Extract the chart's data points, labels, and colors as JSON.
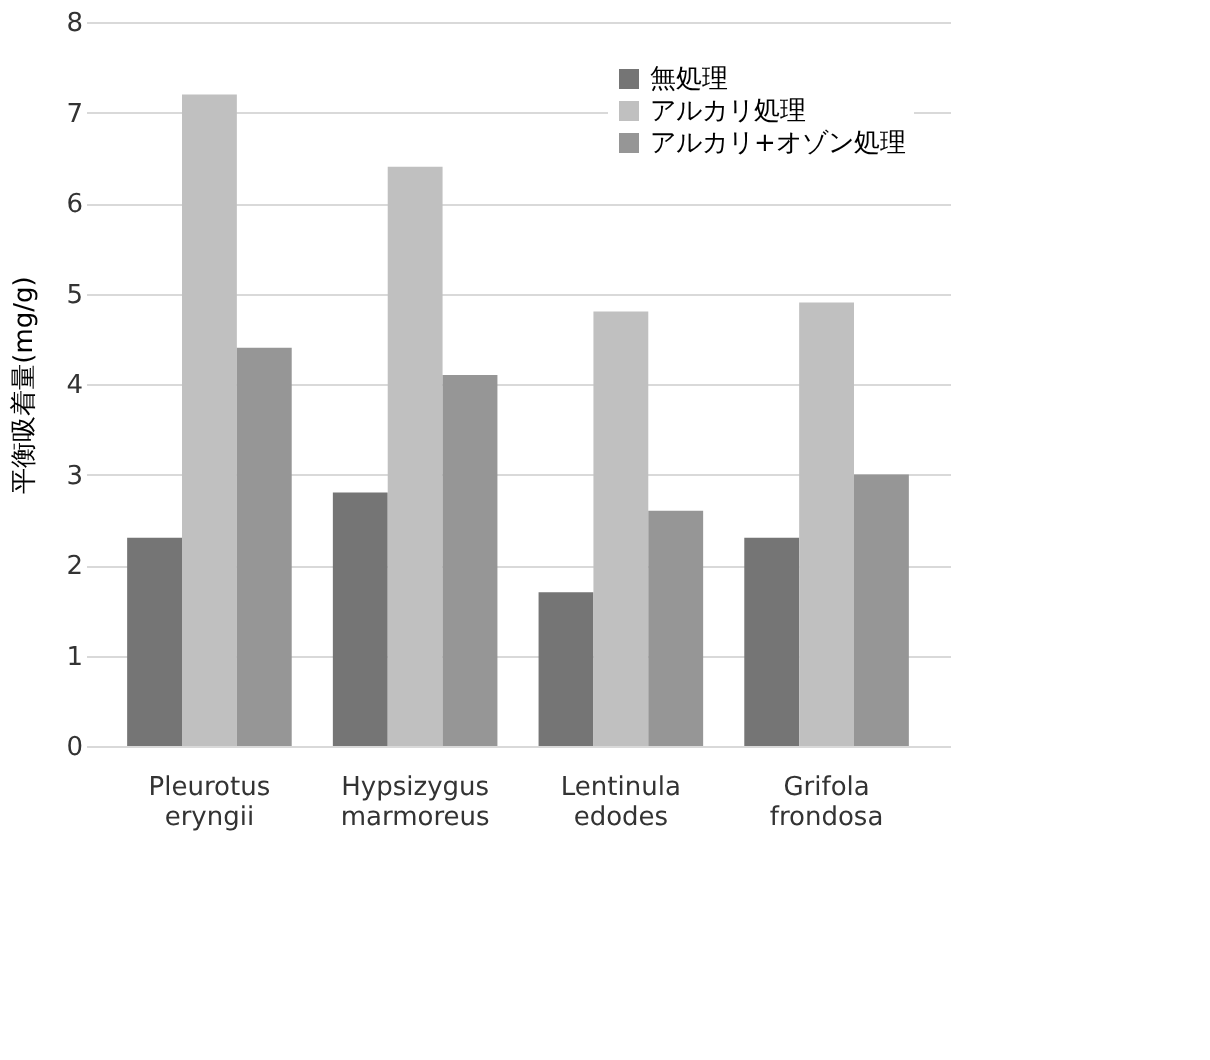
{
  "chart_data": {
    "type": "bar",
    "ylabel": "平衡吸着量(mg/g)",
    "categories": [
      "Pleurotus eryngii",
      "Hypsizygus marmoreus",
      "Lentinula edodes",
      "Grifola frondosa"
    ],
    "series": [
      {
        "name": "無処理",
        "color": "#757575",
        "values": [
          2.3,
          2.8,
          1.7,
          2.3
        ]
      },
      {
        "name": "アルカリ処理",
        "color": "#c0c0c0",
        "values": [
          7.2,
          6.4,
          4.8,
          4.9
        ]
      },
      {
        "name": "アルカリ+オゾン処理",
        "color": "#969696",
        "values": [
          4.4,
          4.1,
          2.6,
          3.0
        ]
      }
    ],
    "ylim": [
      0,
      8
    ],
    "yticks": [
      0,
      1,
      2,
      3,
      4,
      5,
      6,
      7,
      8
    ],
    "grid": "y",
    "legend": "top right"
  }
}
